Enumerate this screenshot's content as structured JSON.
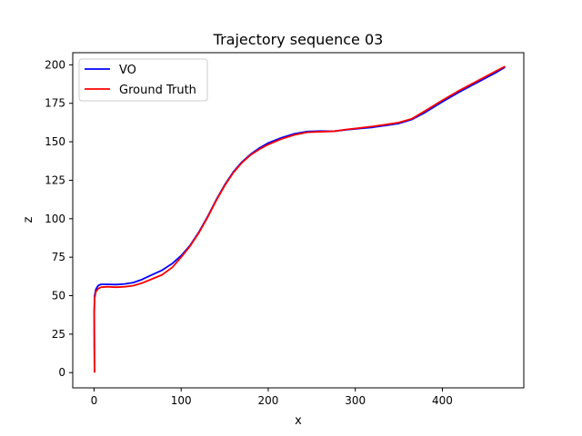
{
  "chart_data": {
    "type": "line",
    "title": "Trajectory sequence 03",
    "xlabel": "x",
    "ylabel": "z",
    "xlim": [
      -24.5,
      493.5
    ],
    "ylim": [
      -9.9,
      207.9
    ],
    "xticks": [
      0,
      100,
      200,
      300,
      400
    ],
    "yticks": [
      0,
      25,
      50,
      75,
      100,
      125,
      150,
      175,
      200
    ],
    "grid": false,
    "legend_placement": "top-left",
    "series": [
      {
        "name": "VO",
        "color": "#0000ff",
        "x": [
          0.5,
          0.3,
          0.2,
          0.6,
          2.0,
          4.6,
          8.0,
          15,
          25,
          35,
          45,
          55,
          65,
          78,
          90,
          100,
          110,
          120,
          130,
          140,
          150,
          160,
          170,
          180,
          190,
          200,
          215,
          230,
          245,
          260,
          275,
          290,
          305,
          320,
          335,
          350,
          365,
          380,
          400,
          420,
          440,
          460,
          472
        ],
        "y": [
          0.5,
          20,
          40,
          50,
          54,
          56.5,
          57.4,
          57.4,
          57.2,
          57.6,
          58.5,
          60.5,
          63.2,
          66.5,
          71,
          76,
          82.5,
          91,
          101,
          112,
          122,
          130.5,
          137,
          142,
          146,
          149.2,
          152.6,
          155.2,
          156.7,
          157.0,
          156.8,
          157.8,
          158.6,
          159.4,
          160.6,
          161.9,
          164.5,
          169,
          176,
          182.5,
          188.5,
          194.5,
          198.5
        ]
      },
      {
        "name": "Ground Truth",
        "color": "#ff0000",
        "x": [
          0.5,
          0.3,
          0.2,
          0.6,
          2.0,
          4.6,
          8.0,
          15,
          25,
          35,
          45,
          55,
          65,
          78,
          90,
          100,
          110,
          120,
          130,
          140,
          150,
          160,
          170,
          180,
          190,
          200,
          215,
          230,
          245,
          260,
          275,
          290,
          305,
          320,
          335,
          350,
          365,
          380,
          400,
          420,
          440,
          460,
          472
        ],
        "y": [
          0.0,
          20,
          40,
          48,
          52.5,
          54.5,
          55.5,
          55.8,
          55.5,
          55.8,
          56.5,
          58.2,
          60.5,
          63.5,
          68.5,
          75,
          82,
          90.5,
          100.5,
          111.5,
          121.5,
          130,
          136.5,
          141.5,
          145.2,
          148.2,
          151.8,
          154.5,
          156.2,
          156.5,
          156.8,
          158,
          159,
          160,
          161.2,
          162.5,
          165,
          170,
          177,
          183.5,
          189.5,
          195.5,
          199
        ]
      }
    ]
  }
}
